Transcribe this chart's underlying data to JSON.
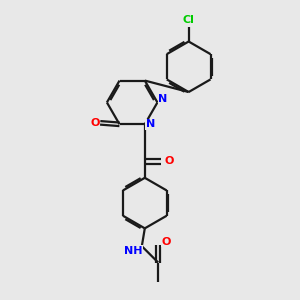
{
  "background_color": "#e8e8e8",
  "bond_color": "#1a1a1a",
  "nitrogen_color": "#0000ff",
  "oxygen_color": "#ff0000",
  "chlorine_color": "#00cc00",
  "line_width": 1.6,
  "figsize": [
    3.0,
    3.0
  ],
  "dpi": 100,
  "xlim": [
    0,
    10
  ],
  "ylim": [
    0,
    10
  ]
}
